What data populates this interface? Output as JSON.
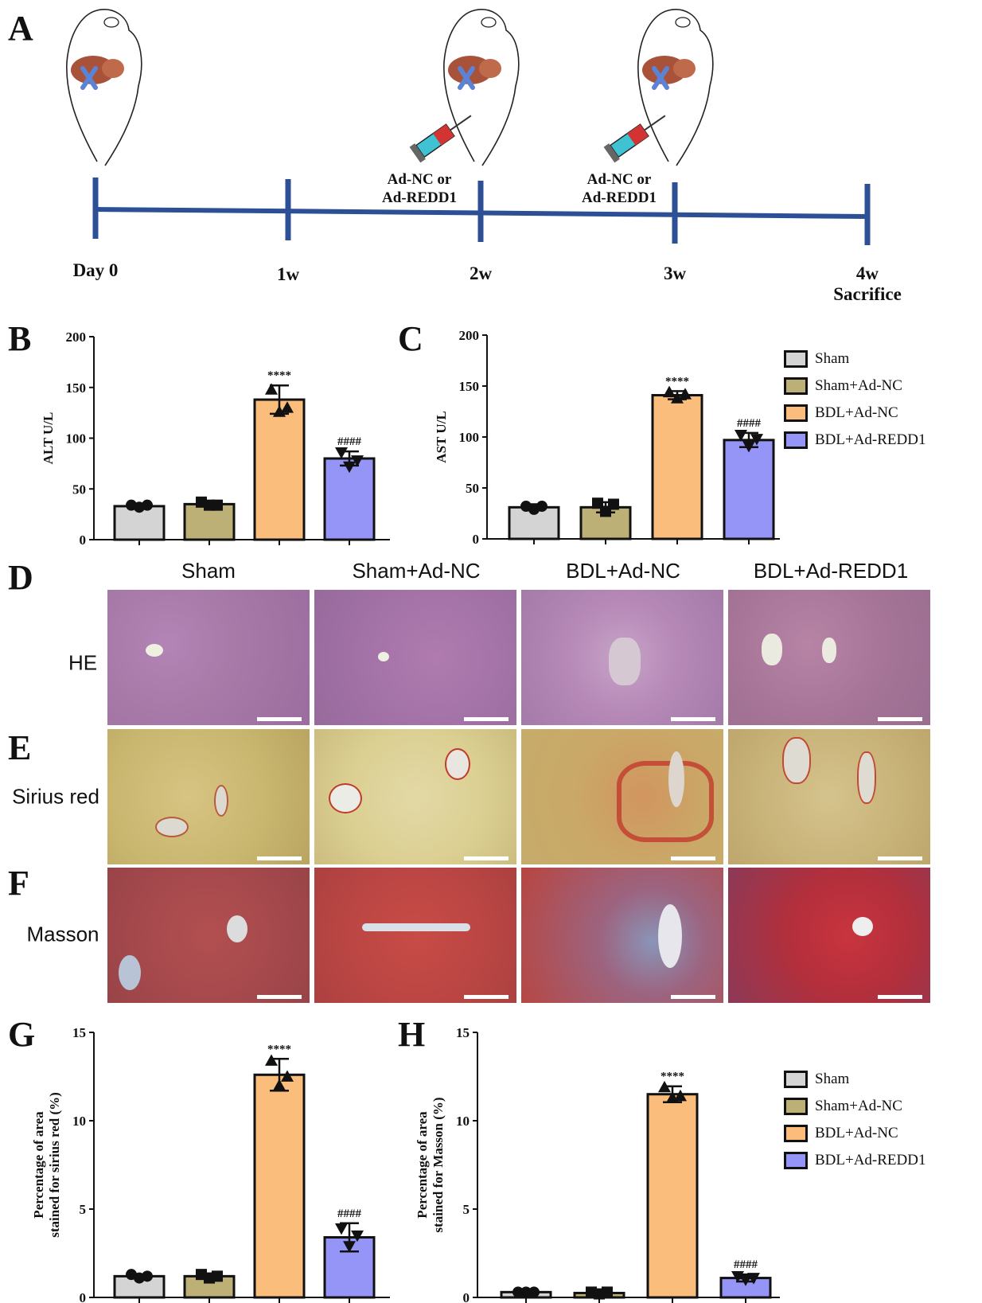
{
  "panels": {
    "a": "A",
    "b": "B",
    "c": "C",
    "d": "D",
    "e": "E",
    "f": "F",
    "g": "G",
    "h": "H"
  },
  "timeline": {
    "ticks": [
      "Day 0",
      "1w",
      "2w",
      "3w",
      "4w"
    ],
    "sacrifice": "Sacrifice",
    "injection_line1": "Ad-NC or",
    "injection_line2": "Ad-REDD1"
  },
  "groups": [
    "Sham",
    "Sham+Ad-NC",
    "BDL+Ad-NC",
    "BDL+Ad-REDD1"
  ],
  "colors": {
    "Sham": "#d4d4d4",
    "Sham+Ad-NC": "#bdb076",
    "BDL+Ad-NC": "#fbbd7c",
    "BDL+Ad-REDD1": "#9595f7",
    "axis": "#111111",
    "timeline": "#2c4f95"
  },
  "micrographs": {
    "column_headers": [
      "Sham",
      "Sham+Ad-NC",
      "BDL+Ad-NC",
      "BDL+Ad-REDD1"
    ],
    "row_labels": [
      "HE",
      "Sirius red",
      "Masson"
    ]
  },
  "chart_data": [
    {
      "type": "bar",
      "panel": "B",
      "ylabel": "ALT U/L",
      "categories": [
        "Sham",
        "Sham+Ad-NC",
        "BDL+Ad-NC",
        "BDL+Ad-REDD1"
      ],
      "values": [
        33,
        35,
        138,
        80
      ],
      "errors": [
        2,
        2,
        14,
        7
      ],
      "points": [
        [
          34,
          32,
          34
        ],
        [
          37,
          34,
          34
        ],
        [
          148,
          126,
          130
        ],
        [
          86,
          72,
          78
        ]
      ],
      "annotations": [
        "",
        "",
        "****",
        "####"
      ],
      "ylim": [
        0,
        200
      ],
      "yticks": [
        0,
        50,
        100,
        150,
        200
      ]
    },
    {
      "type": "bar",
      "panel": "C",
      "ylabel": "AST U/L",
      "categories": [
        "Sham",
        "Sham+Ad-NC",
        "BDL+Ad-NC",
        "BDL+Ad-REDD1"
      ],
      "values": [
        31,
        31,
        141,
        97
      ],
      "errors": [
        3,
        5,
        4,
        7
      ],
      "points": [
        [
          32,
          29,
          32
        ],
        [
          35,
          27,
          34
        ],
        [
          144,
          138,
          142
        ],
        [
          102,
          91,
          98
        ]
      ],
      "annotations": [
        "",
        "",
        "****",
        "####"
      ],
      "ylim": [
        0,
        200
      ],
      "yticks": [
        0,
        50,
        100,
        150,
        200
      ]
    },
    {
      "type": "bar",
      "panel": "G",
      "ylabel": "Percentage of area stained for sirius red (%)",
      "categories": [
        "Sham",
        "Sham+Ad-NC",
        "BDL+Ad-NC",
        "BDL+Ad-REDD1"
      ],
      "values": [
        1.2,
        1.2,
        12.6,
        3.4
      ],
      "errors": [
        0.1,
        0.15,
        0.9,
        0.8
      ],
      "points": [
        [
          1.3,
          1.1,
          1.2
        ],
        [
          1.3,
          1.1,
          1.2
        ],
        [
          13.4,
          12.0,
          12.5
        ],
        [
          3.9,
          2.9,
          3.5
        ]
      ],
      "annotations": [
        "",
        "",
        "****",
        "####"
      ],
      "ylim": [
        0,
        15
      ],
      "yticks": [
        0,
        5,
        10,
        15
      ]
    },
    {
      "type": "bar",
      "panel": "H",
      "ylabel": "Percentage of area stained for Masson (%)",
      "categories": [
        "Sham",
        "Sham+Ad-NC",
        "BDL+Ad-NC",
        "BDL+Ad-REDD1"
      ],
      "values": [
        0.3,
        0.25,
        11.5,
        1.1
      ],
      "errors": [
        0.05,
        0.1,
        0.45,
        0.2
      ],
      "points": [
        [
          0.3,
          0.3,
          0.3
        ],
        [
          0.3,
          0.2,
          0.3
        ],
        [
          11.9,
          11.3,
          11.4
        ],
        [
          1.2,
          1.0,
          1.1
        ]
      ],
      "annotations": [
        "",
        "",
        "****",
        "####"
      ],
      "ylim": [
        0,
        15
      ],
      "yticks": [
        0,
        5,
        10,
        15
      ]
    }
  ]
}
